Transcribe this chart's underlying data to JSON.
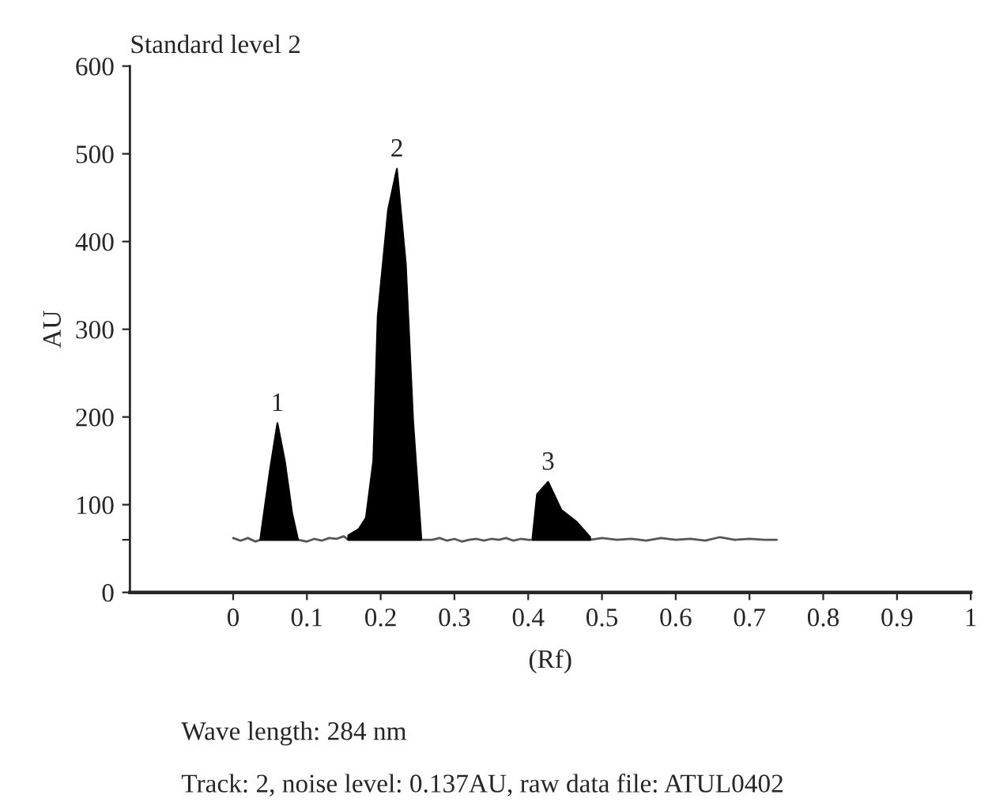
{
  "chart_data": {
    "type": "line",
    "title": "Standard level 2",
    "xlabel": "(Rf)",
    "ylabel": "AU",
    "series": [
      {
        "color": "#555555",
        "x": [
          0,
          0.01,
          0.02,
          0.03,
          0.037,
          0.088,
          0.1,
          0.11,
          0.12,
          0.13,
          0.14,
          0.15,
          0.156,
          0.255,
          0.27,
          0.28,
          0.29,
          0.3,
          0.31,
          0.32,
          0.33,
          0.34,
          0.35,
          0.36,
          0.37,
          0.38,
          0.39,
          0.4,
          0.406,
          0.484,
          0.5,
          0.52,
          0.54,
          0.56,
          0.58,
          0.6,
          0.62,
          0.64,
          0.66,
          0.68,
          0.7,
          0.72,
          0.737
        ],
        "values": [
          62,
          59,
          62,
          58,
          60,
          60,
          58,
          61,
          59,
          62,
          61,
          64,
          60,
          60,
          60,
          62,
          59,
          61,
          58,
          60,
          61,
          59,
          61,
          60,
          62,
          59,
          61,
          60,
          60,
          60,
          62,
          60,
          61,
          59,
          62,
          60,
          61,
          59,
          63,
          60,
          61,
          60,
          60
        ]
      },
      {
        "type": "area",
        "color": "#000000",
        "x": [
          0.037,
          0.05,
          0.06,
          0.07,
          0.08,
          0.088
        ],
        "values": [
          62,
          140,
          193,
          150,
          90,
          60
        ]
      },
      {
        "type": "area",
        "color": "#000000",
        "x": [
          0.156,
          0.17,
          0.18,
          0.19,
          0.196,
          0.21,
          0.222,
          0.234,
          0.244,
          0.255
        ],
        "values": [
          65,
          72,
          85,
          150,
          315,
          436,
          483,
          375,
          195,
          62
        ]
      },
      {
        "type": "area",
        "color": "#000000",
        "x": [
          0.406,
          0.412,
          0.427,
          0.445,
          0.465,
          0.484
        ],
        "values": [
          63,
          112,
          126,
          94,
          81,
          63
        ]
      }
    ],
    "xlim": [
      -0.14,
      1.0
    ],
    "xticks": [
      0,
      0.1,
      0.2,
      0.3,
      0.4,
      0.5,
      0.6,
      0.7,
      0.8,
      0.9,
      1
    ],
    "ylim": [
      0,
      600
    ],
    "yticks": [
      0,
      {
        "value": 60,
        "label": null
      },
      100,
      200,
      300,
      400,
      500,
      600
    ],
    "grid": false,
    "legend": false,
    "annotations": [
      {
        "text": "1",
        "x": 0.06,
        "y": 193
      },
      {
        "text": "2",
        "x": 0.222,
        "y": 483
      },
      {
        "text": "3",
        "x": 0.427,
        "y": 126
      },
      "Wave length: 284 nm",
      "Track: 2, noise level: 0.137AU, raw data file: ATUL0402"
    ]
  }
}
